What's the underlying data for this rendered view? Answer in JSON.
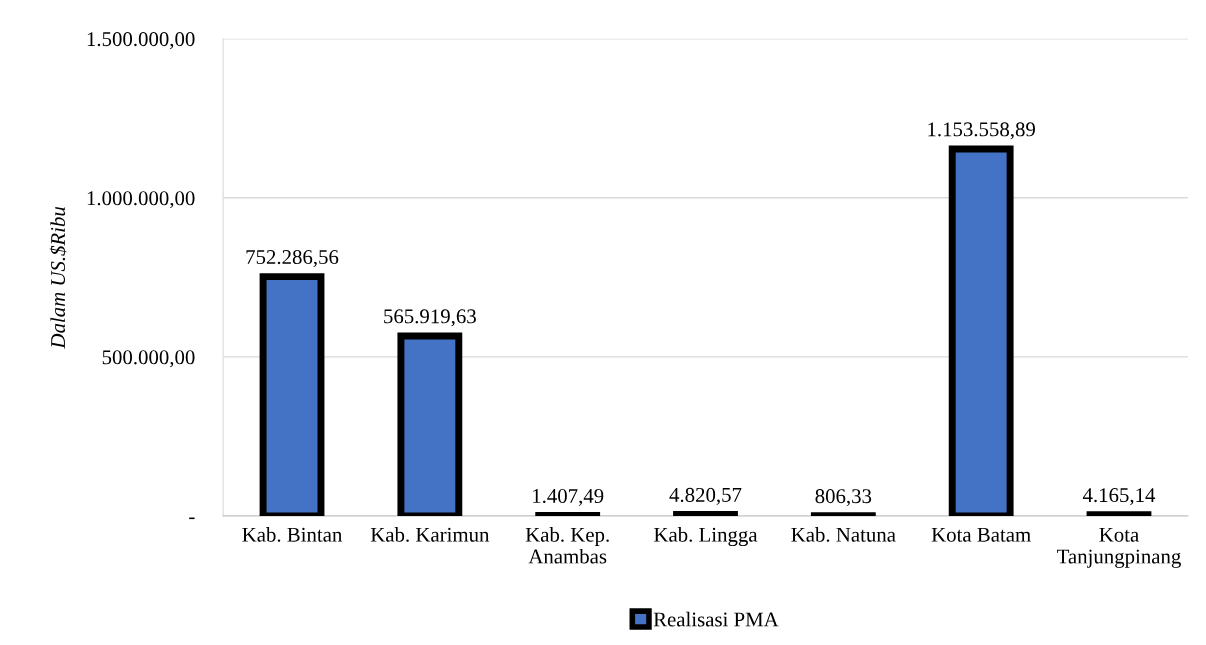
{
  "chart_data": {
    "type": "bar",
    "categories": [
      "Kab. Bintan",
      "Kab. Karimun",
      "Kab. Kep. Anambas",
      "Kab. Lingga",
      "Kab. Natuna",
      "Kota Batam",
      "Kota Tanjungpinang"
    ],
    "series": [
      {
        "name": "Realisasi PMA",
        "color": "#4472c4",
        "values": [
          752286.56,
          565919.63,
          1407.49,
          4820.57,
          806.33,
          1153558.89,
          4165.14
        ],
        "value_labels": [
          "752.286,56",
          "565.919,63",
          "1.407,49",
          "4.820,57",
          "806,33",
          "1.153.558,89",
          "4.165,14"
        ]
      }
    ],
    "ylabel": "Dalam US.$Ribu",
    "ylim": [
      0,
      1500000
    ],
    "yticks": [
      {
        "value": 0,
        "label": "-"
      },
      {
        "value": 500000,
        "label": "500.000,00"
      },
      {
        "value": 1000000,
        "label": "1.000.000,00"
      },
      {
        "value": 1500000,
        "label": "1.500.000,00"
      }
    ],
    "grid": "y",
    "legend": "bottom"
  }
}
